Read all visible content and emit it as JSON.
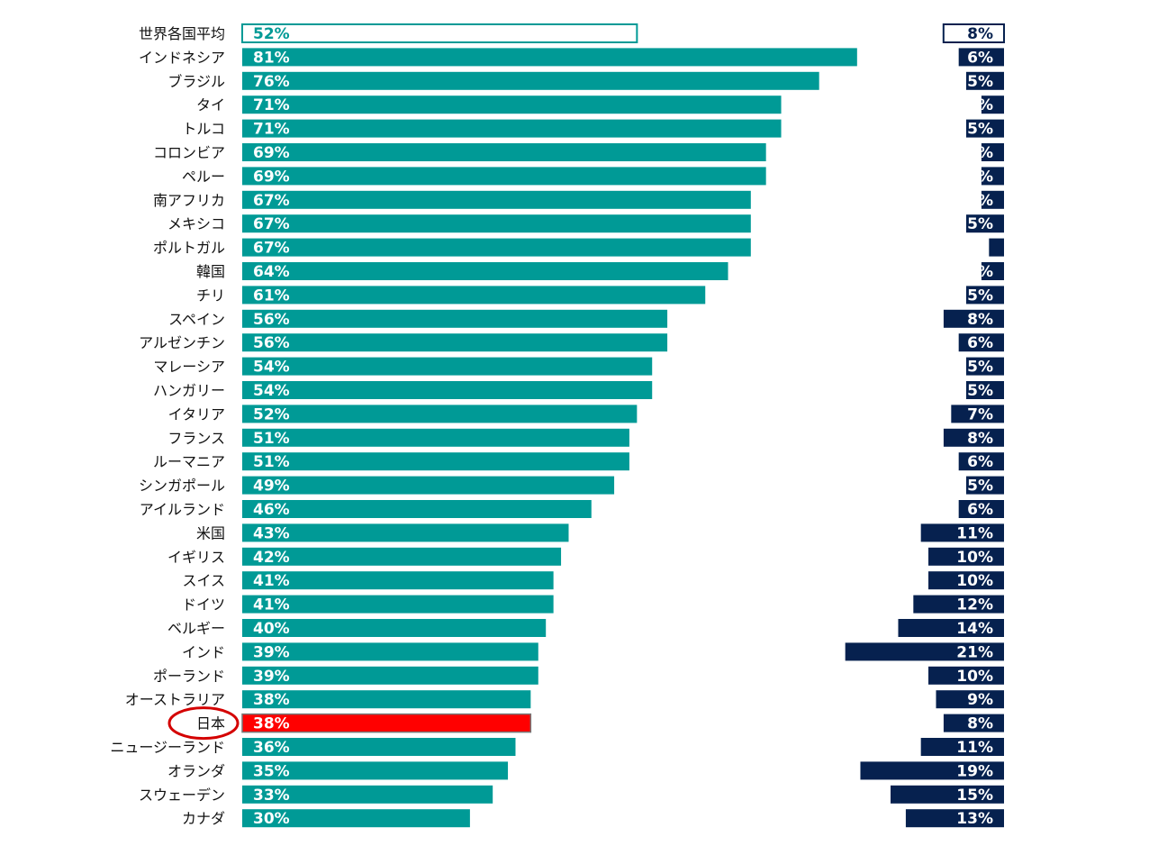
{
  "chart_data": {
    "type": "bar",
    "categories": [
      "世界各国平均",
      "インドネシア",
      "ブラジル",
      "タイ",
      "トルコ",
      "コロンビア",
      "ペルー",
      "南アフリカ",
      "メキシコ",
      "ポルトガル",
      "韓国",
      "チリ",
      "スペイン",
      "アルゼンチン",
      "マレーシア",
      "ハンガリー",
      "イタリア",
      "フランス",
      "ルーマニア",
      "シンガポール",
      "アイルランド",
      "米国",
      "イギリス",
      "スイス",
      "ドイツ",
      "ベルギー",
      "インド",
      "ポーランド",
      "オーストラリア",
      "日本",
      "ニュージーランド",
      "オランダ",
      "スウェーデン",
      "カナダ"
    ],
    "left_values": [
      52,
      81,
      76,
      71,
      71,
      69,
      69,
      67,
      67,
      67,
      64,
      61,
      56,
      56,
      54,
      54,
      52,
      51,
      51,
      49,
      46,
      43,
      42,
      41,
      41,
      40,
      39,
      39,
      38,
      38,
      36,
      35,
      33,
      30
    ],
    "left_labels": [
      "52%",
      "81%",
      "76%",
      "71%",
      "71%",
      "69%",
      "69%",
      "67%",
      "67%",
      "67%",
      "64%",
      "61%",
      "56%",
      "56%",
      "54%",
      "54%",
      "52%",
      "51%",
      "51%",
      "49%",
      "46%",
      "43%",
      "42%",
      "41%",
      "41%",
      "40%",
      "39%",
      "39%",
      "38%",
      "38%",
      "36%",
      "35%",
      "33%",
      "30%"
    ],
    "right_values": [
      8,
      6,
      5,
      3,
      5,
      3,
      3,
      3,
      5,
      2,
      3,
      5,
      8,
      6,
      5,
      5,
      7,
      8,
      6,
      5,
      6,
      11,
      10,
      10,
      12,
      14,
      21,
      10,
      9,
      8,
      11,
      19,
      15,
      13
    ],
    "right_labels": [
      "8%",
      "6%",
      "5%",
      "%",
      "5%",
      "%",
      "%",
      "%",
      "5%",
      "",
      "%",
      "5%",
      "8%",
      "6%",
      "5%",
      "5%",
      "7%",
      "8%",
      "6%",
      "5%",
      "6%",
      "11%",
      "10%",
      "10%",
      "12%",
      "14%",
      "21%",
      "10%",
      "9%",
      "8%",
      "11%",
      "19%",
      "15%",
      "13%"
    ],
    "highlight": {
      "category": "日本",
      "bar_color": "#ff0000",
      "circle_color": "#d40000"
    },
    "average_category": "世界各国平均",
    "colors": {
      "left_bar": "#009a96",
      "right_bar": "#06214f",
      "average_outline_left": "#009a96",
      "average_outline_right": "#06214f",
      "label_on_bar": "#ffffff"
    }
  }
}
